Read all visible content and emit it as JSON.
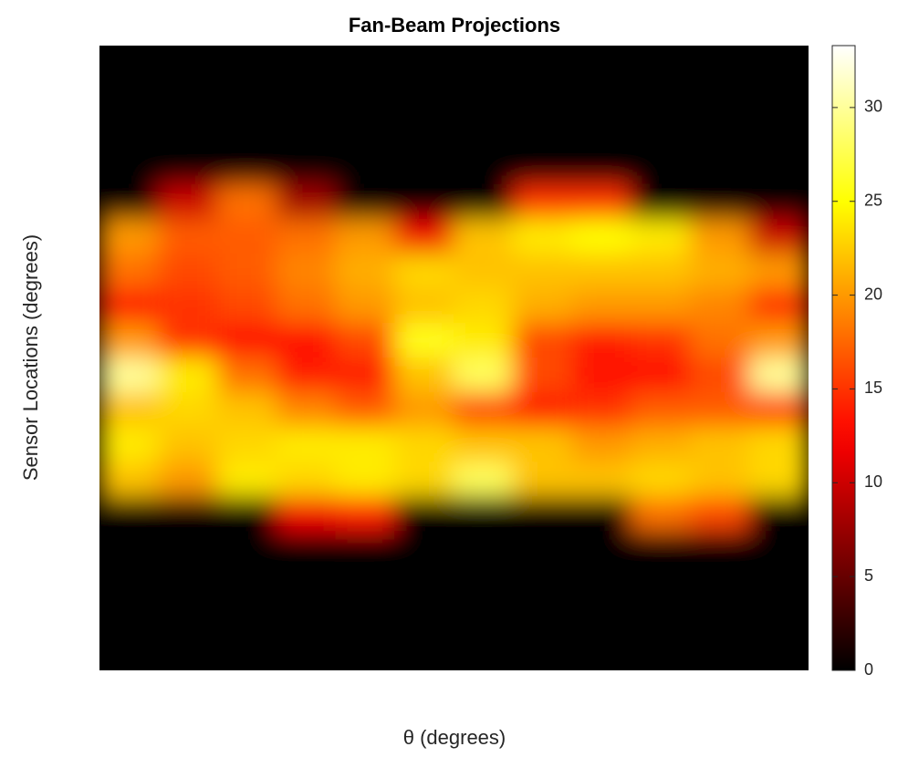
{
  "chart_data": {
    "type": "heatmap",
    "title": "Fan-Beam Projections",
    "x_label": "θ (degrees)",
    "y_label": "Sensor Locations (degrees)",
    "colormap": "hot",
    "clim": [
      0,
      33.3
    ],
    "cticks": [
      0,
      5,
      10,
      15,
      20,
      25,
      30
    ],
    "z": [
      [
        0,
        0,
        0,
        0,
        0,
        0,
        0,
        0,
        0,
        0,
        0,
        0
      ],
      [
        0,
        0,
        0,
        0,
        0,
        0,
        0,
        0,
        0,
        0,
        0,
        0
      ],
      [
        0,
        0,
        0,
        0,
        0,
        0,
        0,
        0,
        0,
        0,
        0,
        0
      ],
      [
        0,
        0,
        0,
        0,
        0,
        0,
        0,
        0,
        0,
        0,
        0,
        0
      ],
      [
        0,
        10,
        18,
        8,
        0,
        0,
        0,
        15,
        15,
        0,
        0,
        0
      ],
      [
        20,
        17,
        17,
        18,
        20,
        12,
        22,
        24,
        25,
        24,
        20,
        10
      ],
      [
        18,
        16,
        17,
        19,
        21,
        23,
        22,
        22,
        22,
        22,
        21,
        20
      ],
      [
        14,
        15,
        16,
        18,
        20,
        22,
        23,
        21,
        20,
        20,
        19,
        15
      ],
      [
        20,
        15,
        13,
        13,
        16,
        26,
        24,
        16,
        14,
        15,
        18,
        20
      ],
      [
        30,
        24,
        18,
        14,
        14,
        22,
        28,
        16,
        13,
        13,
        16,
        30
      ],
      [
        22,
        23,
        22,
        19,
        17,
        20,
        16,
        14,
        15,
        17,
        17,
        16
      ],
      [
        24,
        22,
        23,
        24,
        24,
        23,
        22,
        22,
        20,
        21,
        22,
        23
      ],
      [
        22,
        20,
        24,
        23,
        24,
        23,
        28,
        22,
        22,
        23,
        22,
        23
      ],
      [
        0,
        0,
        0,
        12,
        14,
        0,
        0,
        0,
        0,
        18,
        16,
        0
      ],
      [
        0,
        0,
        0,
        0,
        0,
        0,
        0,
        0,
        0,
        0,
        0,
        0
      ],
      [
        0,
        0,
        0,
        0,
        0,
        0,
        0,
        0,
        0,
        0,
        0,
        0
      ],
      [
        0,
        0,
        0,
        0,
        0,
        0,
        0,
        0,
        0,
        0,
        0,
        0
      ],
      [
        0,
        0,
        0,
        0,
        0,
        0,
        0,
        0,
        0,
        0,
        0,
        0
      ]
    ]
  }
}
